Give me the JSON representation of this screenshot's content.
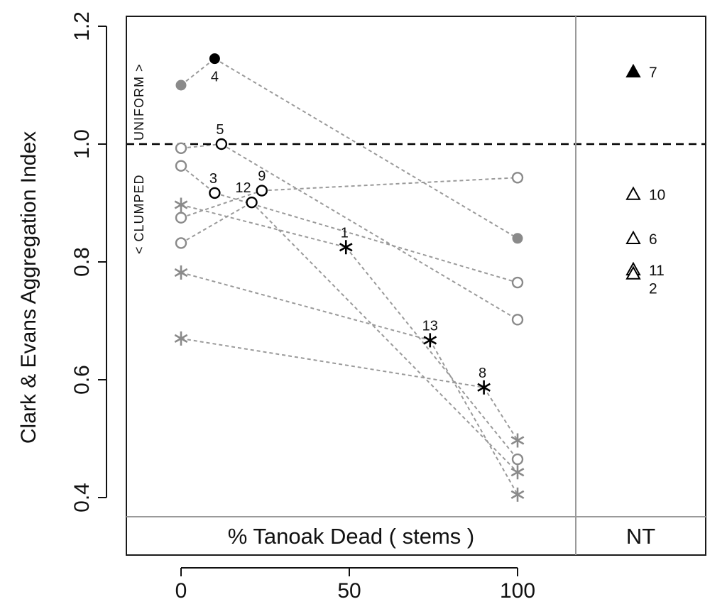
{
  "chart_data": {
    "type": "scatter",
    "title": "",
    "ylabel": "Clark & Evans Aggregation Index",
    "xlabel": "% Tanoak Dead   ( stems )",
    "nt_label": "NT",
    "xlim": [
      -16,
      116
    ],
    "ylim": [
      0.37,
      1.22
    ],
    "xticks": [
      {
        "value": 0,
        "label": "0"
      },
      {
        "value": 50,
        "label": "50"
      },
      {
        "value": 100,
        "label": "100"
      }
    ],
    "yticks": [
      {
        "value": 0.4,
        "label": "0.4"
      },
      {
        "value": 0.6,
        "label": "0.6"
      },
      {
        "value": 0.8,
        "label": "0.8"
      },
      {
        "value": 1.0,
        "label": "1.0"
      },
      {
        "value": 1.2,
        "label": "1.2"
      }
    ],
    "reference_line": {
      "y": 1.0,
      "style": "dashed"
    },
    "annotation": {
      "clumped": "< CLUMPED",
      "uniform": "UNIFORM >"
    },
    "connections": [
      [
        [
          0,
          0.67
        ],
        [
          90,
          0.587
        ]
      ],
      [
        [
          0,
          0.782
        ],
        [
          74,
          0.667
        ]
      ],
      [
        [
          0,
          0.897
        ],
        [
          49,
          0.825
        ]
      ],
      [
        [
          0,
          1.1
        ],
        [
          10,
          1.145
        ]
      ],
      [
        [
          0,
          0.832
        ],
        [
          21,
          0.901
        ]
      ],
      [
        [
          0,
          0.875
        ],
        [
          24,
          0.921
        ]
      ],
      [
        [
          0,
          0.963
        ],
        [
          10,
          0.917
        ]
      ],
      [
        [
          0,
          0.993
        ],
        [
          12,
          1.0
        ]
      ],
      [
        [
          10,
          1.145
        ],
        [
          100,
          0.84
        ]
      ],
      [
        [
          24,
          0.921
        ],
        [
          100,
          0.943
        ]
      ],
      [
        [
          10,
          0.917
        ],
        [
          100,
          0.765
        ]
      ],
      [
        [
          12,
          1.0
        ],
        [
          100,
          0.702
        ]
      ],
      [
        [
          49,
          0.825
        ],
        [
          100,
          0.465
        ]
      ],
      [
        [
          21,
          0.901
        ],
        [
          100,
          0.443
        ]
      ],
      [
        [
          74,
          0.667
        ],
        [
          100,
          0.405
        ]
      ],
      [
        [
          90,
          0.587
        ],
        [
          100,
          0.497
        ]
      ]
    ],
    "points": [
      {
        "x": 10,
        "y": 1.145,
        "marker": "filled-circle",
        "color": "#000000",
        "label": "4",
        "lx": 0,
        "ly": 26
      },
      {
        "x": 12,
        "y": 1.0,
        "marker": "open-circle",
        "color": "#000000",
        "label": "5",
        "lx": -2,
        "ly": -20
      },
      {
        "x": 10,
        "y": 0.917,
        "marker": "open-circle",
        "color": "#000000",
        "label": "3",
        "lx": -2,
        "ly": -20
      },
      {
        "x": 21,
        "y": 0.901,
        "marker": "open-circle",
        "color": "#000000",
        "label": "12",
        "lx": -12,
        "ly": -20
      },
      {
        "x": 24,
        "y": 0.921,
        "marker": "open-circle",
        "color": "#000000",
        "label": "9",
        "lx": 0,
        "ly": -20
      },
      {
        "x": 49,
        "y": 0.825,
        "marker": "asterisk",
        "color": "#000000",
        "label": "1",
        "lx": -2,
        "ly": -20
      },
      {
        "x": 74,
        "y": 0.667,
        "marker": "asterisk",
        "color": "#000000",
        "label": "13",
        "lx": 0,
        "ly": -20
      },
      {
        "x": 90,
        "y": 0.587,
        "marker": "asterisk",
        "color": "#000000",
        "label": "8",
        "lx": -2,
        "ly": -20
      },
      {
        "x": 0,
        "y": 1.1,
        "marker": "filled-circle",
        "color": "#8a8a8a",
        "label": ""
      },
      {
        "x": 0,
        "y": 0.993,
        "marker": "open-circle",
        "color": "#8a8a8a",
        "label": ""
      },
      {
        "x": 0,
        "y": 0.963,
        "marker": "open-circle",
        "color": "#8a8a8a",
        "label": ""
      },
      {
        "x": 0,
        "y": 0.875,
        "marker": "open-circle",
        "color": "#8a8a8a",
        "label": ""
      },
      {
        "x": 0,
        "y": 0.832,
        "marker": "open-circle",
        "color": "#8a8a8a",
        "label": ""
      },
      {
        "x": 0,
        "y": 0.897,
        "marker": "asterisk",
        "color": "#8a8a8a",
        "label": ""
      },
      {
        "x": 0,
        "y": 0.782,
        "marker": "asterisk",
        "color": "#8a8a8a",
        "label": ""
      },
      {
        "x": 0,
        "y": 0.67,
        "marker": "asterisk",
        "color": "#8a8a8a",
        "label": ""
      },
      {
        "x": 100,
        "y": 0.943,
        "marker": "open-circle",
        "color": "#8a8a8a",
        "label": ""
      },
      {
        "x": 100,
        "y": 0.84,
        "marker": "filled-circle",
        "color": "#8a8a8a",
        "label": ""
      },
      {
        "x": 100,
        "y": 0.765,
        "marker": "open-circle",
        "color": "#8a8a8a",
        "label": ""
      },
      {
        "x": 100,
        "y": 0.702,
        "marker": "open-circle",
        "color": "#8a8a8a",
        "label": ""
      },
      {
        "x": 100,
        "y": 0.497,
        "marker": "asterisk",
        "color": "#8a8a8a",
        "label": ""
      },
      {
        "x": 100,
        "y": 0.465,
        "marker": "open-circle",
        "color": "#8a8a8a",
        "label": ""
      },
      {
        "x": 100,
        "y": 0.443,
        "marker": "asterisk",
        "color": "#8a8a8a",
        "label": ""
      },
      {
        "x": 100,
        "y": 0.405,
        "marker": "asterisk",
        "color": "#8a8a8a",
        "label": ""
      }
    ],
    "nt_points": [
      {
        "y": 1.123,
        "marker": "filled-triangle",
        "label": "7"
      },
      {
        "y": 0.915,
        "marker": "open-triangle",
        "label": "10"
      },
      {
        "y": 0.84,
        "marker": "open-triangle",
        "label": "6"
      },
      {
        "y": 0.787,
        "marker": "open-triangle",
        "label": "11"
      },
      {
        "y": 0.78,
        "marker": "open-triangle",
        "label": "2"
      }
    ]
  }
}
